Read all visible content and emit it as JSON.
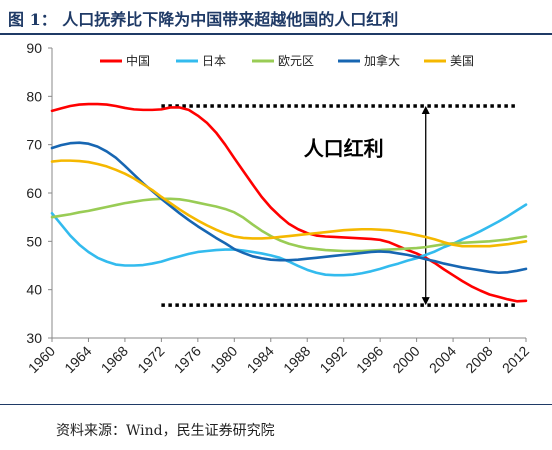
{
  "figure": {
    "title": "图 1： 人口抚养比下降为中国带来超越他国的人口红利",
    "source": "资料来源：Wind，民生证券研究院"
  },
  "chart_data": {
    "type": "line",
    "title": "",
    "xlabel": "",
    "ylabel": "",
    "xlim": [
      1960,
      2012
    ],
    "ylim": [
      30,
      90
    ],
    "yticks": [
      30,
      40,
      50,
      60,
      70,
      80,
      90
    ],
    "xticks": [
      1960,
      1964,
      1968,
      1972,
      1976,
      1980,
      1984,
      1988,
      1992,
      1996,
      2000,
      2004,
      2008,
      2012
    ],
    "grid": false,
    "legend": "top",
    "x": [
      1960,
      1961,
      1962,
      1963,
      1964,
      1965,
      1966,
      1967,
      1968,
      1969,
      1970,
      1971,
      1972,
      1973,
      1974,
      1975,
      1976,
      1977,
      1978,
      1979,
      1980,
      1981,
      1982,
      1983,
      1984,
      1985,
      1986,
      1987,
      1988,
      1989,
      1990,
      1991,
      1992,
      1993,
      1994,
      1995,
      1996,
      1997,
      1998,
      1999,
      2000,
      2001,
      2002,
      2003,
      2004,
      2005,
      2006,
      2007,
      2008,
      2009,
      2010,
      2011,
      2012
    ],
    "series": [
      {
        "name": "中国",
        "color": "#ff0000",
        "values": [
          77.0,
          77.5,
          78.0,
          78.3,
          78.4,
          78.4,
          78.3,
          78.0,
          77.6,
          77.3,
          77.2,
          77.2,
          77.3,
          77.7,
          77.7,
          77.2,
          76.0,
          74.5,
          72.5,
          70.0,
          67.2,
          64.5,
          61.8,
          59.2,
          57.0,
          55.2,
          53.6,
          52.5,
          51.7,
          51.2,
          51.0,
          50.9,
          50.8,
          50.7,
          50.6,
          50.5,
          50.3,
          49.8,
          49.0,
          48.2,
          47.5,
          46.6,
          45.5,
          44.2,
          43.0,
          41.8,
          40.7,
          39.8,
          39.0,
          38.5,
          38.0,
          37.6,
          37.7
        ]
      },
      {
        "name": "日本",
        "color": "#33bbee",
        "values": [
          55.8,
          53.5,
          51.2,
          49.3,
          47.8,
          46.6,
          45.8,
          45.2,
          45.0,
          45.0,
          45.1,
          45.4,
          45.8,
          46.4,
          46.9,
          47.4,
          47.8,
          48.0,
          48.2,
          48.3,
          48.3,
          48.1,
          47.8,
          47.5,
          47.1,
          46.6,
          45.8,
          44.9,
          44.1,
          43.5,
          43.1,
          43.0,
          43.0,
          43.1,
          43.4,
          43.8,
          44.3,
          44.9,
          45.4,
          46.0,
          46.5,
          47.2,
          47.9,
          48.8,
          49.5,
          50.4,
          51.2,
          52.1,
          53.1,
          54.1,
          55.2,
          56.4,
          57.6
        ]
      },
      {
        "name": "欧元区",
        "color": "#99cc55",
        "values": [
          55.0,
          55.3,
          55.6,
          56.0,
          56.3,
          56.7,
          57.1,
          57.5,
          57.9,
          58.2,
          58.5,
          58.7,
          58.8,
          58.8,
          58.7,
          58.4,
          58.0,
          57.6,
          57.2,
          56.7,
          56.0,
          54.9,
          53.5,
          52.2,
          51.1,
          50.2,
          49.5,
          49.0,
          48.6,
          48.4,
          48.2,
          48.1,
          48.0,
          48.0,
          48.0,
          48.1,
          48.2,
          48.3,
          48.4,
          48.5,
          48.6,
          48.8,
          49.1,
          49.4,
          49.6,
          49.7,
          49.8,
          49.9,
          50.0,
          50.2,
          50.4,
          50.7,
          51.0
        ]
      },
      {
        "name": "加拿大",
        "color": "#1766b2",
        "values": [
          69.3,
          69.9,
          70.3,
          70.4,
          70.2,
          69.6,
          68.6,
          67.3,
          65.6,
          63.8,
          62.0,
          60.4,
          58.8,
          57.3,
          55.8,
          54.4,
          53.1,
          51.9,
          50.7,
          49.6,
          48.4,
          47.6,
          46.9,
          46.5,
          46.2,
          46.1,
          46.1,
          46.2,
          46.4,
          46.6,
          46.8,
          47.0,
          47.2,
          47.4,
          47.6,
          47.8,
          47.9,
          47.8,
          47.5,
          47.2,
          46.8,
          46.3,
          45.9,
          45.4,
          45.0,
          44.6,
          44.3,
          44.0,
          43.7,
          43.5,
          43.6,
          43.9,
          44.3
        ]
      },
      {
        "name": "美国",
        "color": "#f5b800",
        "values": [
          66.5,
          66.7,
          66.7,
          66.6,
          66.4,
          66.0,
          65.5,
          64.8,
          64.0,
          63.0,
          61.8,
          60.6,
          59.2,
          57.9,
          56.6,
          55.4,
          54.3,
          53.3,
          52.4,
          51.6,
          51.0,
          50.7,
          50.6,
          50.6,
          50.7,
          50.9,
          51.1,
          51.3,
          51.5,
          51.7,
          51.9,
          52.1,
          52.3,
          52.4,
          52.5,
          52.5,
          52.4,
          52.3,
          52.0,
          51.7,
          51.3,
          50.9,
          50.4,
          49.8,
          49.3,
          49.0,
          49.0,
          49.0,
          49.0,
          49.2,
          49.4,
          49.7,
          50.0
        ]
      }
    ],
    "annotations": [
      {
        "type": "hline",
        "y": 78,
        "x_from": 1972,
        "x_to": 2011,
        "style": "dotted",
        "color": "#000000"
      },
      {
        "type": "hline",
        "y": 36.8,
        "x_from": 1972,
        "x_to": 2011,
        "style": "dotted",
        "color": "#000000"
      },
      {
        "type": "double-arrow",
        "x": 2001,
        "y_from": 78,
        "y_to": 36.8,
        "color": "#000000"
      },
      {
        "type": "text",
        "text": "人口红利",
        "x": 1992,
        "y": 67.8
      }
    ]
  }
}
